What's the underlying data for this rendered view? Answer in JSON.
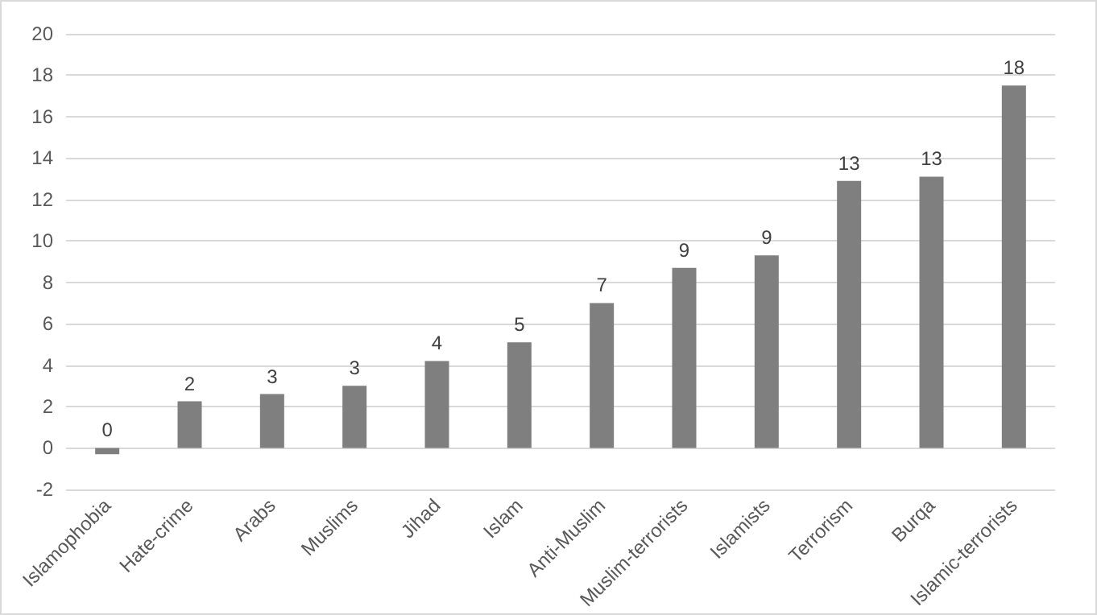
{
  "chart_data": {
    "type": "bar",
    "categories": [
      "Islamophobia",
      "Hate-crime",
      "Arabs",
      "Muslims",
      "Jihad",
      "Islam",
      "Anti-Muslim",
      "Muslim-terrorists",
      "Islamists",
      "Terrorism",
      "Burqa",
      "Islamic-terrorists"
    ],
    "values": [
      -0.3,
      2.25,
      2.6,
      3.0,
      4.2,
      5.1,
      7.0,
      8.7,
      9.3,
      12.9,
      13.1,
      17.5
    ],
    "value_labels": [
      "0",
      "2",
      "3",
      "3",
      "4",
      "5",
      "7",
      "9",
      "9",
      "13",
      "13",
      "18"
    ],
    "color": "#7f7f7f",
    "ylim": [
      -2,
      20
    ],
    "yticks": [
      -2,
      0,
      2,
      4,
      6,
      8,
      10,
      12,
      14,
      16,
      18,
      20
    ],
    "grid": "y"
  }
}
